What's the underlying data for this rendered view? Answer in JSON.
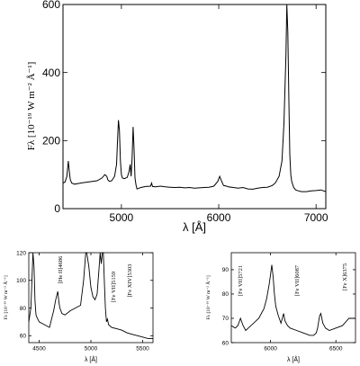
{
  "chart_data": [
    {
      "type": "line",
      "panel": "main",
      "xlabel": "λ [Å]",
      "ylabel": "Fλ [10⁻¹⁹ W m⁻² Å⁻¹]",
      "xlim": [
        4400,
        7100
      ],
      "ylim": [
        0,
        600
      ],
      "x_ticks": [
        5000,
        6000,
        7000
      ],
      "y_ticks": [
        0,
        200,
        400,
        600
      ],
      "x": [
        4400,
        4420,
        4440,
        4455,
        4465,
        4475,
        4490,
        4520,
        4560,
        4600,
        4650,
        4700,
        4750,
        4800,
        4830,
        4850,
        4860,
        4870,
        4880,
        4900,
        4930,
        4950,
        4960,
        4970,
        4980,
        4990,
        5000,
        5010,
        5030,
        5060,
        5080,
        5090,
        5100,
        5110,
        5120,
        5130,
        5140,
        5150,
        5160,
        5180,
        5200,
        5250,
        5300,
        5310,
        5320,
        5350,
        5400,
        5450,
        5500,
        5550,
        5600,
        5650,
        5700,
        5750,
        5800,
        5850,
        5900,
        5950,
        5990,
        6010,
        6030,
        6050,
        6080,
        6100,
        6150,
        6200,
        6250,
        6300,
        6350,
        6400,
        6450,
        6500,
        6550,
        6580,
        6620,
        6650,
        6670,
        6690,
        6700,
        6710,
        6720,
        6730,
        6740,
        6750,
        6770,
        6790,
        6820,
        6850,
        6900,
        6950,
        7000,
        7050,
        7100
      ],
      "y": [
        75,
        78,
        95,
        140,
        110,
        85,
        75,
        72,
        74,
        76,
        78,
        80,
        82,
        90,
        100,
        95,
        85,
        82,
        80,
        82,
        95,
        130,
        200,
        260,
        230,
        140,
        100,
        90,
        88,
        92,
        110,
        130,
        95,
        150,
        240,
        180,
        90,
        70,
        58,
        60,
        62,
        65,
        66,
        75,
        65,
        64,
        66,
        64,
        63,
        62,
        63,
        61,
        62,
        60,
        61,
        62,
        63,
        66,
        80,
        95,
        80,
        68,
        66,
        64,
        62,
        60,
        62,
        58,
        57,
        60,
        62,
        63,
        68,
        75,
        95,
        140,
        250,
        450,
        600,
        520,
        330,
        160,
        100,
        80,
        62,
        55,
        52,
        50,
        50,
        52,
        53,
        55,
        50
      ]
    },
    {
      "type": "line",
      "panel": "bottom-left",
      "xlabel": "λ [Å]",
      "ylabel": "Fλ [10⁻¹⁹ W m⁻² Å⁻¹]",
      "xlim": [
        4400,
        5600
      ],
      "ylim": [
        55,
        120
      ],
      "x_ticks": [
        4500,
        5000,
        5500
      ],
      "y_ticks": [
        60,
        80,
        100,
        120
      ],
      "annotations": [
        "[He II]4686",
        "[Fe VII]5159",
        "[Fe XIV]5303"
      ],
      "x": [
        4400,
        4420,
        4430,
        4440,
        4450,
        4460,
        4470,
        4480,
        4500,
        4550,
        4600,
        4620,
        4640,
        4660,
        4680,
        4690,
        4700,
        4720,
        4750,
        4800,
        4850,
        4900,
        4930,
        4950,
        4960,
        4980,
        5000,
        5020,
        5040,
        5060,
        5080,
        5090,
        5100,
        5110,
        5120,
        5130,
        5140,
        5150,
        5160,
        5170,
        5200,
        5250,
        5300,
        5350,
        5400,
        5450,
        5500,
        5550,
        5600
      ],
      "y": [
        70,
        80,
        100,
        125,
        110,
        85,
        75,
        73,
        70,
        68,
        66,
        72,
        78,
        86,
        92,
        85,
        80,
        76,
        75,
        78,
        80,
        82,
        100,
        120,
        125,
        110,
        95,
        88,
        86,
        90,
        110,
        125,
        112,
        125,
        125,
        100,
        80,
        70,
        72,
        68,
        66,
        65,
        64,
        62,
        61,
        60,
        59,
        58,
        58
      ]
    },
    {
      "type": "line",
      "panel": "bottom-right",
      "xlabel": "λ [Å]",
      "ylabel": "Fλ [10⁻¹⁹ W m⁻² Å⁻¹]",
      "xlim": [
        5700,
        6650
      ],
      "ylim": [
        60,
        97
      ],
      "x_ticks": [
        6000,
        6500
      ],
      "y_ticks": [
        60,
        70,
        80,
        90
      ],
      "annotations": [
        "[Fe VII]5721",
        "[Fe VII]6087",
        "[Fe X]6375"
      ],
      "x": [
        5700,
        5730,
        5750,
        5770,
        5790,
        5810,
        5830,
        5850,
        5870,
        5890,
        5910,
        5930,
        5950,
        5970,
        5990,
        6000,
        6010,
        6020,
        6030,
        6040,
        6060,
        6080,
        6090,
        6100,
        6110,
        6130,
        6150,
        6200,
        6250,
        6300,
        6330,
        6350,
        6360,
        6375,
        6385,
        6400,
        6420,
        6450,
        6500,
        6550,
        6600,
        6650
      ],
      "y": [
        67,
        66,
        67,
        70,
        67,
        65,
        66,
        67,
        68,
        69,
        70,
        72,
        74,
        78,
        84,
        88,
        92,
        87,
        80,
        75,
        71,
        68,
        70,
        72,
        69,
        67,
        66,
        65,
        64,
        63,
        63,
        64,
        66,
        71,
        72,
        68,
        66,
        65,
        66,
        67,
        70,
        70
      ]
    }
  ]
}
